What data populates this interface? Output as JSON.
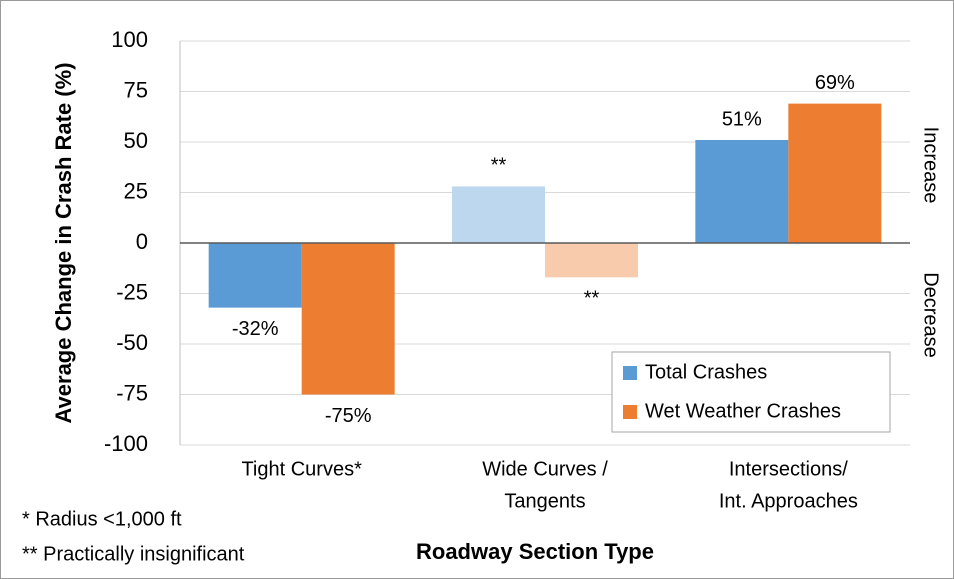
{
  "chart_data": {
    "type": "bar",
    "y_label": "Average Change in Crash Rate (%)",
    "x_label": "Roadway Section Type",
    "categories": [
      [
        "Tight Curves*"
      ],
      [
        "Wide Curves /",
        "Tangents"
      ],
      [
        "Intersections/",
        "Int. Approaches"
      ]
    ],
    "series": [
      {
        "name": "Total Crashes",
        "color": "#5b9bd5",
        "colors": [
          "#5b9bd5",
          "#bdd7ee",
          "#5b9bd5"
        ],
        "values": [
          -32,
          28,
          51
        ],
        "value_labels": [
          "-32%",
          "**",
          "51%"
        ]
      },
      {
        "name": "Wet Weather Crashes",
        "color": "#ed7d31",
        "colors": [
          "#ed7d31",
          "#f8cbad",
          "#ed7d31"
        ],
        "values": [
          -75,
          -17,
          69
        ],
        "value_labels": [
          "-75%",
          "**",
          "69%"
        ]
      }
    ],
    "ylim": [
      -100,
      100
    ],
    "yticks": [
      -100,
      -75,
      -50,
      -25,
      0,
      25,
      50,
      75,
      100
    ],
    "grid": true,
    "legend": "lower right",
    "side_labels": [
      "Increase",
      "Decrease"
    ],
    "footnotes": [
      "* Radius <1,000 ft",
      "** Practically insignificant"
    ]
  }
}
